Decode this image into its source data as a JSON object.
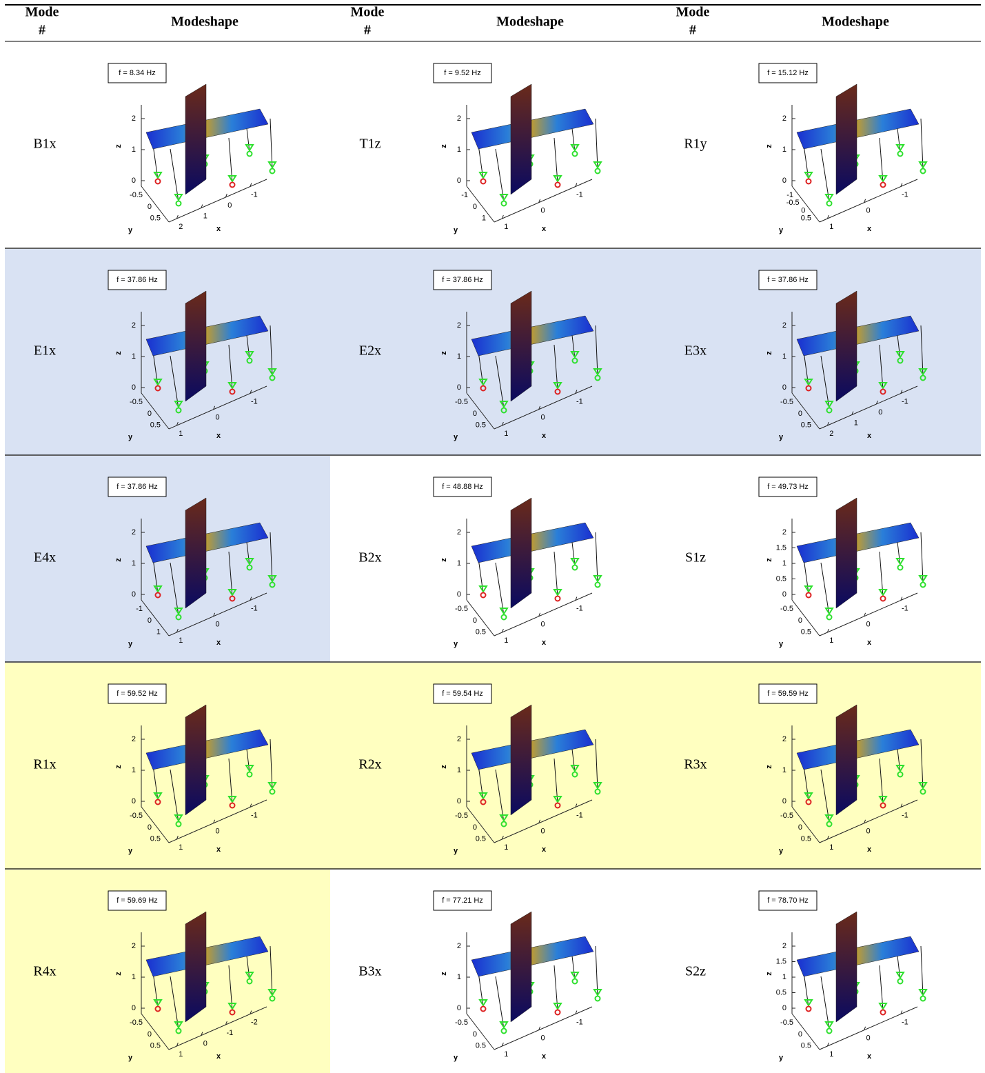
{
  "header": {
    "mode": "Mode",
    "number": "#",
    "modeshape": "Modeshape"
  },
  "axis_labels": {
    "x": "x",
    "y": "y",
    "z": "z"
  },
  "rows": [
    [
      {
        "mode": "B1x",
        "freq": "f = 8.34 Hz",
        "zticks": [
          2,
          1,
          0
        ],
        "yticks": [
          -0.5,
          0,
          0.5
        ],
        "xticks": [
          2,
          1,
          0,
          -1
        ]
      },
      {
        "mode": "T1z",
        "freq": "f = 9.52 Hz",
        "zticks": [
          2,
          1,
          0
        ],
        "yticks": [
          -1,
          0,
          1
        ],
        "xticks": [
          1,
          0,
          -1
        ]
      },
      {
        "mode": "R1y",
        "freq": "f = 15.12 Hz",
        "zticks": [
          2,
          1,
          0
        ],
        "yticks": [
          -1,
          -0.5,
          0,
          0.5
        ],
        "xticks": [
          1,
          0,
          -1
        ]
      }
    ],
    [
      {
        "mode": "E1x",
        "freq": "f = 37.86 Hz",
        "zticks": [
          2,
          1,
          0
        ],
        "yticks": [
          -0.5,
          0,
          0.5
        ],
        "xticks": [
          1,
          0,
          -1
        ],
        "background": "#d9e2f3"
      },
      {
        "mode": "E2x",
        "freq": "f = 37.86 Hz",
        "zticks": [
          2,
          1,
          0
        ],
        "yticks": [
          -0.5,
          0,
          0.5
        ],
        "xticks": [
          1,
          0,
          -1
        ],
        "background": "#d9e2f3"
      },
      {
        "mode": "E3x",
        "freq": "f = 37.86 Hz",
        "zticks": [
          2,
          1,
          0
        ],
        "yticks": [
          -0.5,
          0,
          0.5
        ],
        "xticks": [
          2,
          1,
          0,
          -1
        ],
        "background": "#d9e2f3"
      }
    ],
    [
      {
        "mode": "E4x",
        "freq": "f = 37.86 Hz",
        "zticks": [
          2,
          1,
          0
        ],
        "yticks": [
          -1,
          0,
          1
        ],
        "xticks": [
          1,
          0,
          -1
        ],
        "background": "#d9e2f3"
      },
      {
        "mode": "B2x",
        "freq": "f = 48.88 Hz",
        "zticks": [
          2,
          1,
          0
        ],
        "yticks": [
          -0.5,
          0,
          0.5
        ],
        "xticks": [
          1,
          0,
          -1
        ]
      },
      {
        "mode": "S1z",
        "freq": "f = 49.73 Hz",
        "zticks": [
          2,
          1.5,
          1,
          0.5,
          0
        ],
        "yticks": [
          -0.5,
          0,
          0.5
        ],
        "xticks": [
          1,
          0,
          -1
        ]
      }
    ],
    [
      {
        "mode": "R1x",
        "freq": "f = 59.52 Hz",
        "zticks": [
          2,
          1,
          0
        ],
        "yticks": [
          -0.5,
          0,
          0.5
        ],
        "xticks": [
          1,
          0,
          -1
        ],
        "background": "#ffffc0"
      },
      {
        "mode": "R2x",
        "freq": "f = 59.54 Hz",
        "zticks": [
          2,
          1,
          0
        ],
        "yticks": [
          -0.5,
          0,
          0.5
        ],
        "xticks": [
          1,
          0,
          -1
        ],
        "background": "#ffffc0"
      },
      {
        "mode": "R3x",
        "freq": "f = 59.59 Hz",
        "zticks": [
          2,
          1,
          0
        ],
        "yticks": [
          -0.5,
          0,
          0.5
        ],
        "xticks": [
          1,
          0,
          -1
        ],
        "background": "#ffffc0"
      }
    ],
    [
      {
        "mode": "R4x",
        "freq": "f = 59.69 Hz",
        "zticks": [
          2,
          1,
          0
        ],
        "yticks": [
          -0.5,
          0,
          0.5
        ],
        "xticks": [
          1,
          0,
          -1,
          -2
        ],
        "background": "#ffffc0"
      },
      {
        "mode": "B3x",
        "freq": "f = 77.21 Hz",
        "zticks": [
          2,
          1,
          0
        ],
        "yticks": [
          -0.5,
          0,
          0.5
        ],
        "xticks": [
          1,
          0,
          -1
        ]
      },
      {
        "mode": "S2z",
        "freq": "f = 78.70 Hz",
        "zticks": [
          2,
          1.5,
          1,
          0.5,
          0
        ],
        "yticks": [
          -0.5,
          0,
          0.5
        ],
        "xticks": [
          1,
          0,
          -1
        ]
      }
    ]
  ]
}
